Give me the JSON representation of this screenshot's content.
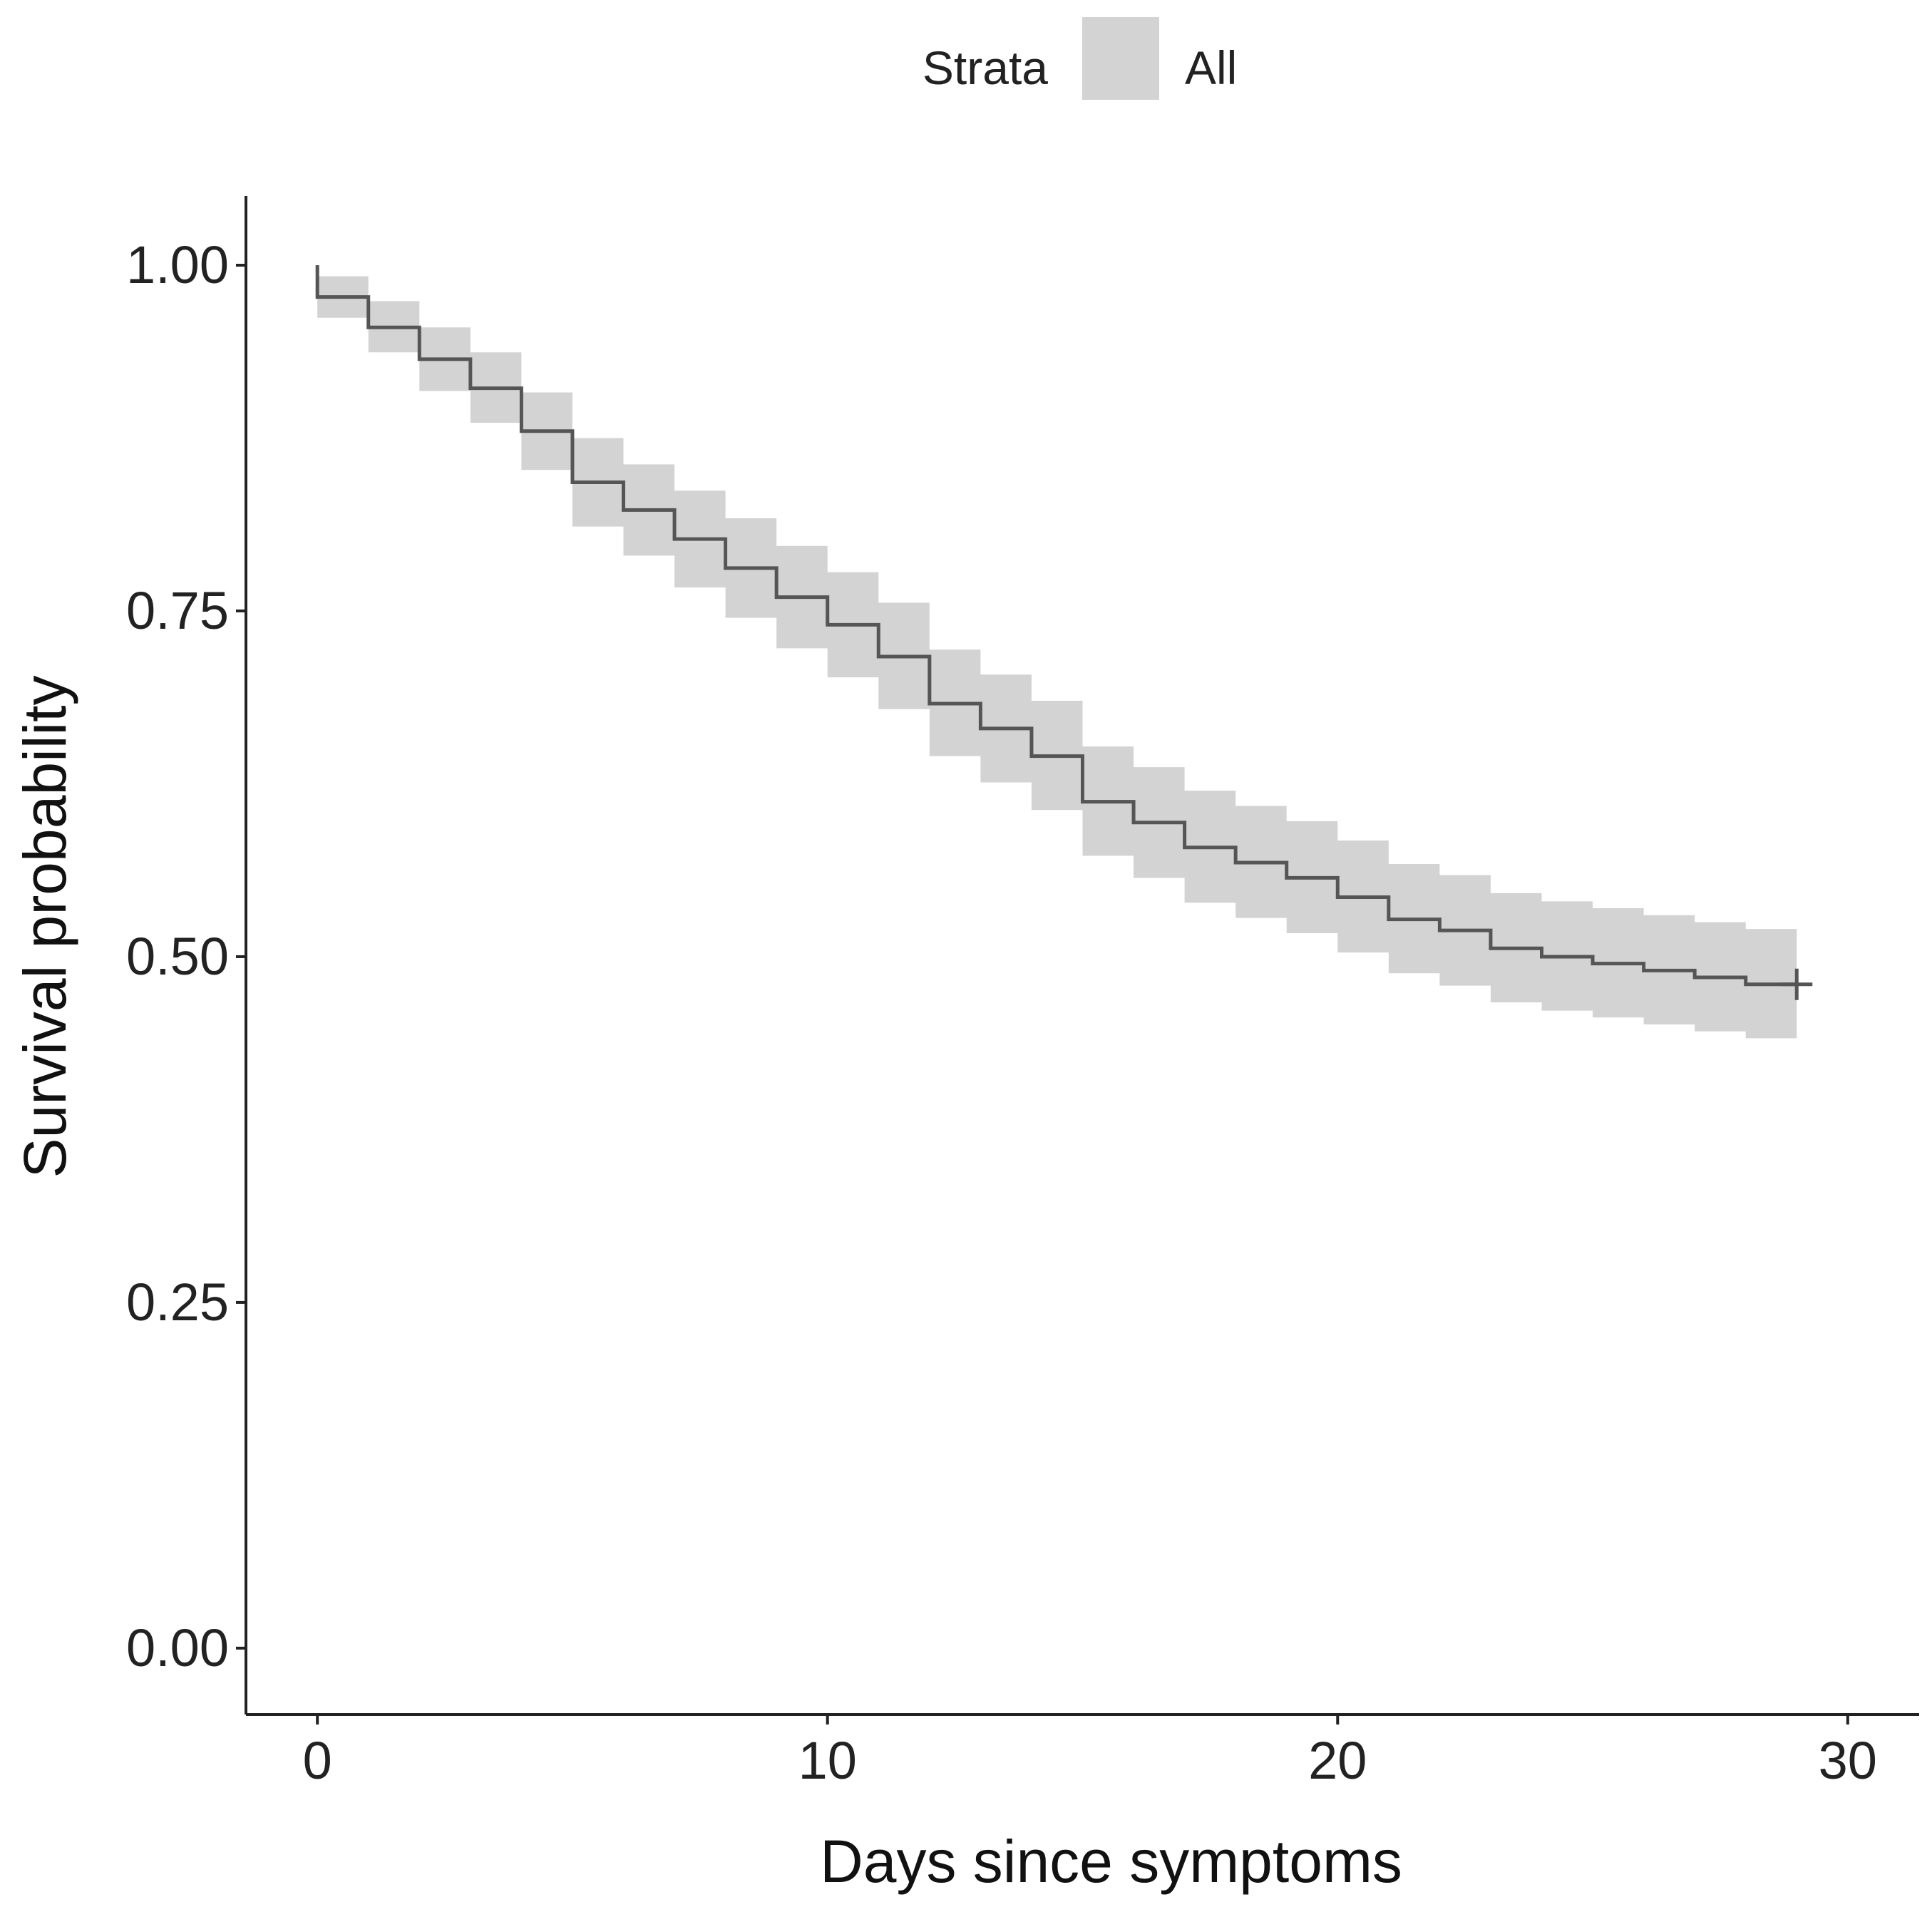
{
  "chart_data": {
    "type": "line",
    "subtype": "kaplan-meier-step",
    "title": "",
    "xlabel": "Days since symptoms",
    "ylabel": "Survival probability",
    "xlim": [
      -1.4,
      31.4
    ],
    "ylim": [
      -0.048,
      1.05
    ],
    "xticks": [
      0,
      10,
      20,
      30
    ],
    "xtick_labels": [
      "0",
      "10",
      "20",
      "30"
    ],
    "yticks": [
      0.0,
      0.25,
      0.5,
      0.75,
      1.0
    ],
    "ytick_labels": [
      "0.00",
      "0.25",
      "0.50",
      "0.75",
      "1.00"
    ],
    "legend": {
      "title": "Strata",
      "position": "top-center",
      "entries": [
        {
          "label": "All",
          "swatch_color": "#d3d3d3"
        }
      ]
    },
    "series": [
      {
        "name": "All",
        "line_color": "#555555",
        "ci_color": "#d3d3d3",
        "times": [
          0,
          1,
          2,
          3,
          4,
          5,
          6,
          7,
          8,
          9,
          10,
          11,
          12,
          13,
          14,
          15,
          16,
          17,
          18,
          19,
          20,
          21,
          22,
          23,
          24,
          25,
          26,
          27,
          28
        ],
        "survival": [
          0.977,
          0.955,
          0.932,
          0.911,
          0.88,
          0.843,
          0.823,
          0.802,
          0.781,
          0.76,
          0.74,
          0.717,
          0.683,
          0.665,
          0.645,
          0.612,
          0.597,
          0.579,
          0.568,
          0.557,
          0.543,
          0.527,
          0.519,
          0.506,
          0.5,
          0.495,
          0.49,
          0.485,
          0.48
        ],
        "lower_ci": [
          0.962,
          0.937,
          0.909,
          0.886,
          0.852,
          0.811,
          0.79,
          0.767,
          0.745,
          0.723,
          0.702,
          0.679,
          0.645,
          0.626,
          0.606,
          0.573,
          0.557,
          0.539,
          0.528,
          0.517,
          0.503,
          0.488,
          0.479,
          0.467,
          0.461,
          0.456,
          0.451,
          0.446,
          0.441
        ],
        "upper_ci": [
          0.992,
          0.974,
          0.955,
          0.937,
          0.908,
          0.875,
          0.856,
          0.837,
          0.817,
          0.797,
          0.778,
          0.756,
          0.722,
          0.704,
          0.685,
          0.652,
          0.637,
          0.62,
          0.609,
          0.598,
          0.584,
          0.567,
          0.559,
          0.546,
          0.54,
          0.535,
          0.53,
          0.525,
          0.52
        ],
        "end_time": 29,
        "censor_marks": [
          {
            "time": 29,
            "survival": 0.48
          }
        ]
      }
    ]
  }
}
